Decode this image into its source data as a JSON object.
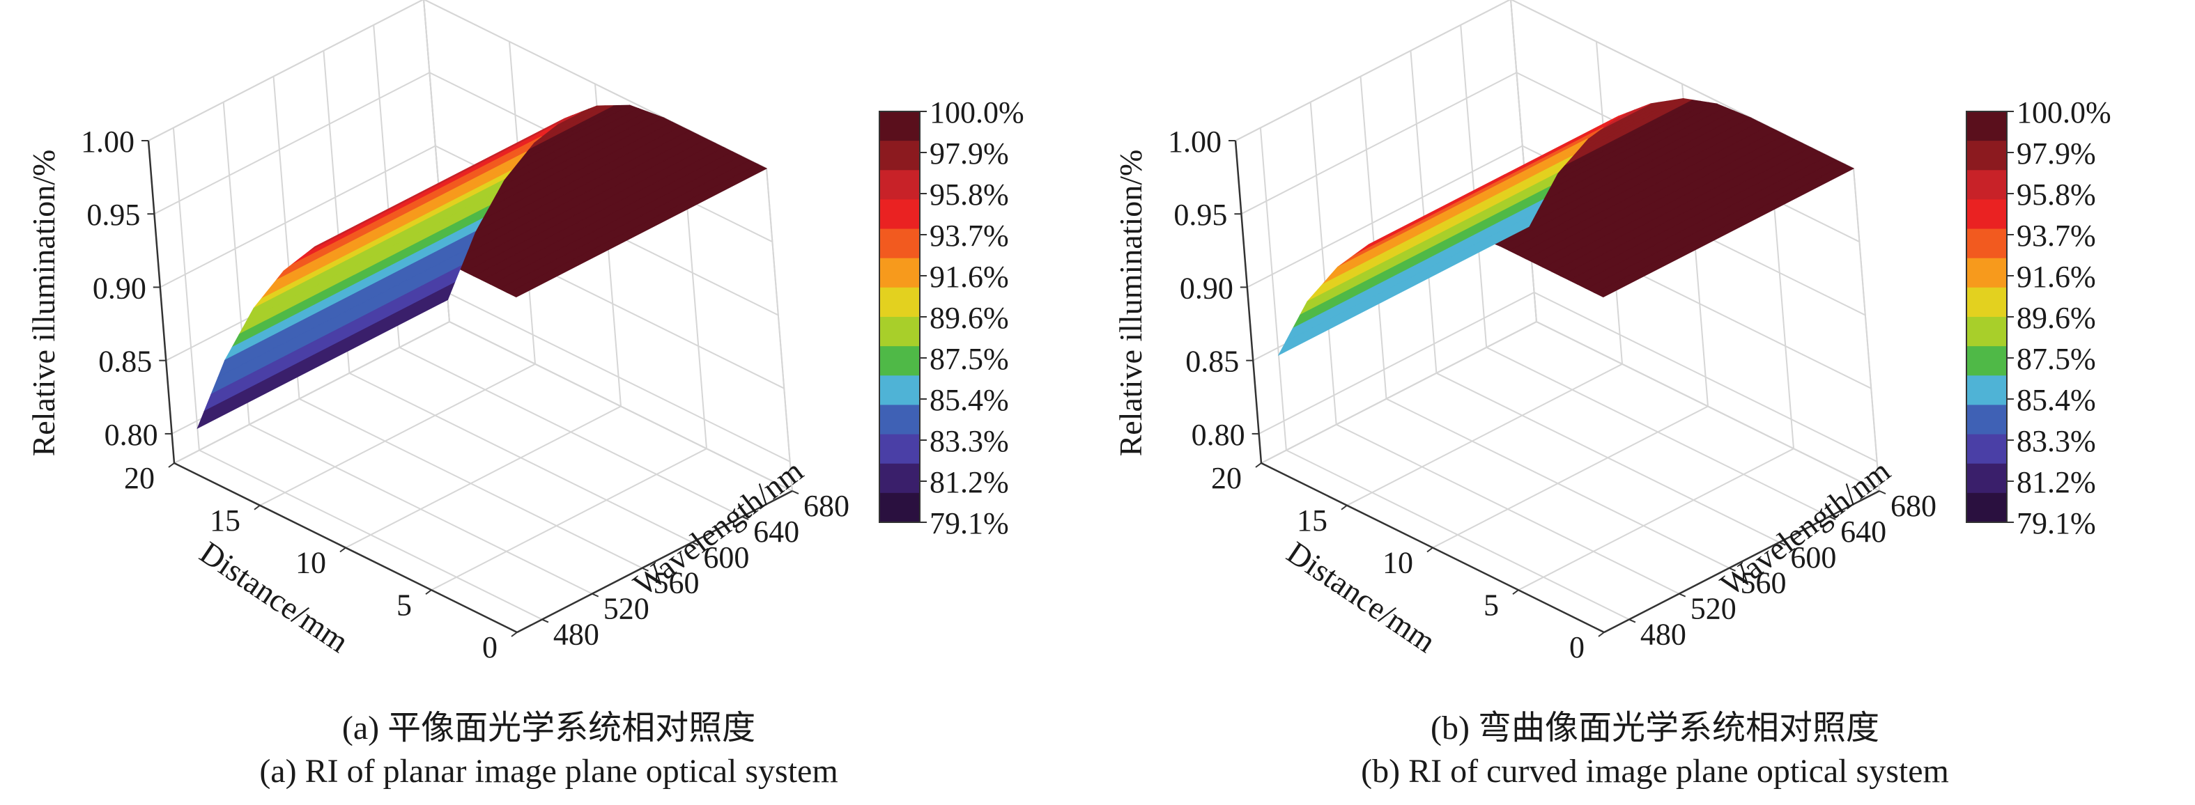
{
  "colorbar": {
    "labels": [
      "100.0%",
      "97.9%",
      "95.8%",
      "93.7%",
      "91.6%",
      "89.6%",
      "87.5%",
      "85.4%",
      "83.3%",
      "81.2%",
      "79.1%"
    ],
    "colors": [
      "#5a0f1c",
      "#8c1a1f",
      "#c82228",
      "#ea2222",
      "#f25a1f",
      "#f79a1c",
      "#e3d11f",
      "#a8cf2a",
      "#4fb947",
      "#4fb3d6",
      "#3f61b5",
      "#4a3fa6",
      "#3a1f6b",
      "#2a103f"
    ]
  },
  "chart_data": [
    {
      "type": "surface",
      "panel": "a",
      "zlabel": "Relative illumination/%",
      "xlabel": "Distance/mm",
      "ylabel": "Wavelength/nm",
      "z_ticks": [
        "1.00",
        "0.95",
        "0.90",
        "0.85",
        "0.80"
      ],
      "x_ticks": [
        "20",
        "15",
        "10",
        "5",
        "0"
      ],
      "y_ticks": [
        "680",
        "640",
        "600",
        "560",
        "520",
        "480"
      ],
      "zlim": [
        0.78,
        1.0
      ],
      "xlim": [
        0,
        20
      ],
      "ylim": [
        460,
        680
      ],
      "colorbar_range_percent": [
        79.1,
        100.0
      ],
      "distance_mm": [
        0,
        2,
        4,
        6,
        8,
        10,
        12,
        14,
        16,
        18,
        20
      ],
      "relative_illumination": [
        1.0,
        1.0,
        1.0,
        1.0,
        0.997,
        0.985,
        0.965,
        0.937,
        0.9,
        0.853,
        0.795
      ],
      "caption_zh": "(a) 平像面光学系统相对照度",
      "caption_en": "(a) RI of planar image plane optical system"
    },
    {
      "type": "surface",
      "panel": "b",
      "zlabel": "Relative illumination/%",
      "xlabel": "Distance/mm",
      "ylabel": "Wavelength/nm",
      "z_ticks": [
        "1.00",
        "0.95",
        "0.90",
        "0.85",
        "0.80"
      ],
      "x_ticks": [
        "20",
        "15",
        "10",
        "5",
        "0"
      ],
      "y_ticks": [
        "680",
        "640",
        "600",
        "560",
        "520",
        "480"
      ],
      "zlim": [
        0.78,
        1.0
      ],
      "xlim": [
        0,
        20
      ],
      "ylim": [
        460,
        680
      ],
      "colorbar_range_percent": [
        79.1,
        100.0
      ],
      "distance_mm": [
        0,
        2,
        4,
        6,
        8,
        10,
        12,
        14,
        16,
        18,
        20
      ],
      "relative_illumination": [
        1.0,
        1.0,
        1.0,
        1.0,
        0.998,
        0.99,
        0.975,
        0.955,
        0.928,
        0.893,
        0.845
      ],
      "caption_zh": "(b) 弯曲像面光学系统相对照度",
      "caption_en": "(b) RI of curved image plane optical system"
    }
  ]
}
